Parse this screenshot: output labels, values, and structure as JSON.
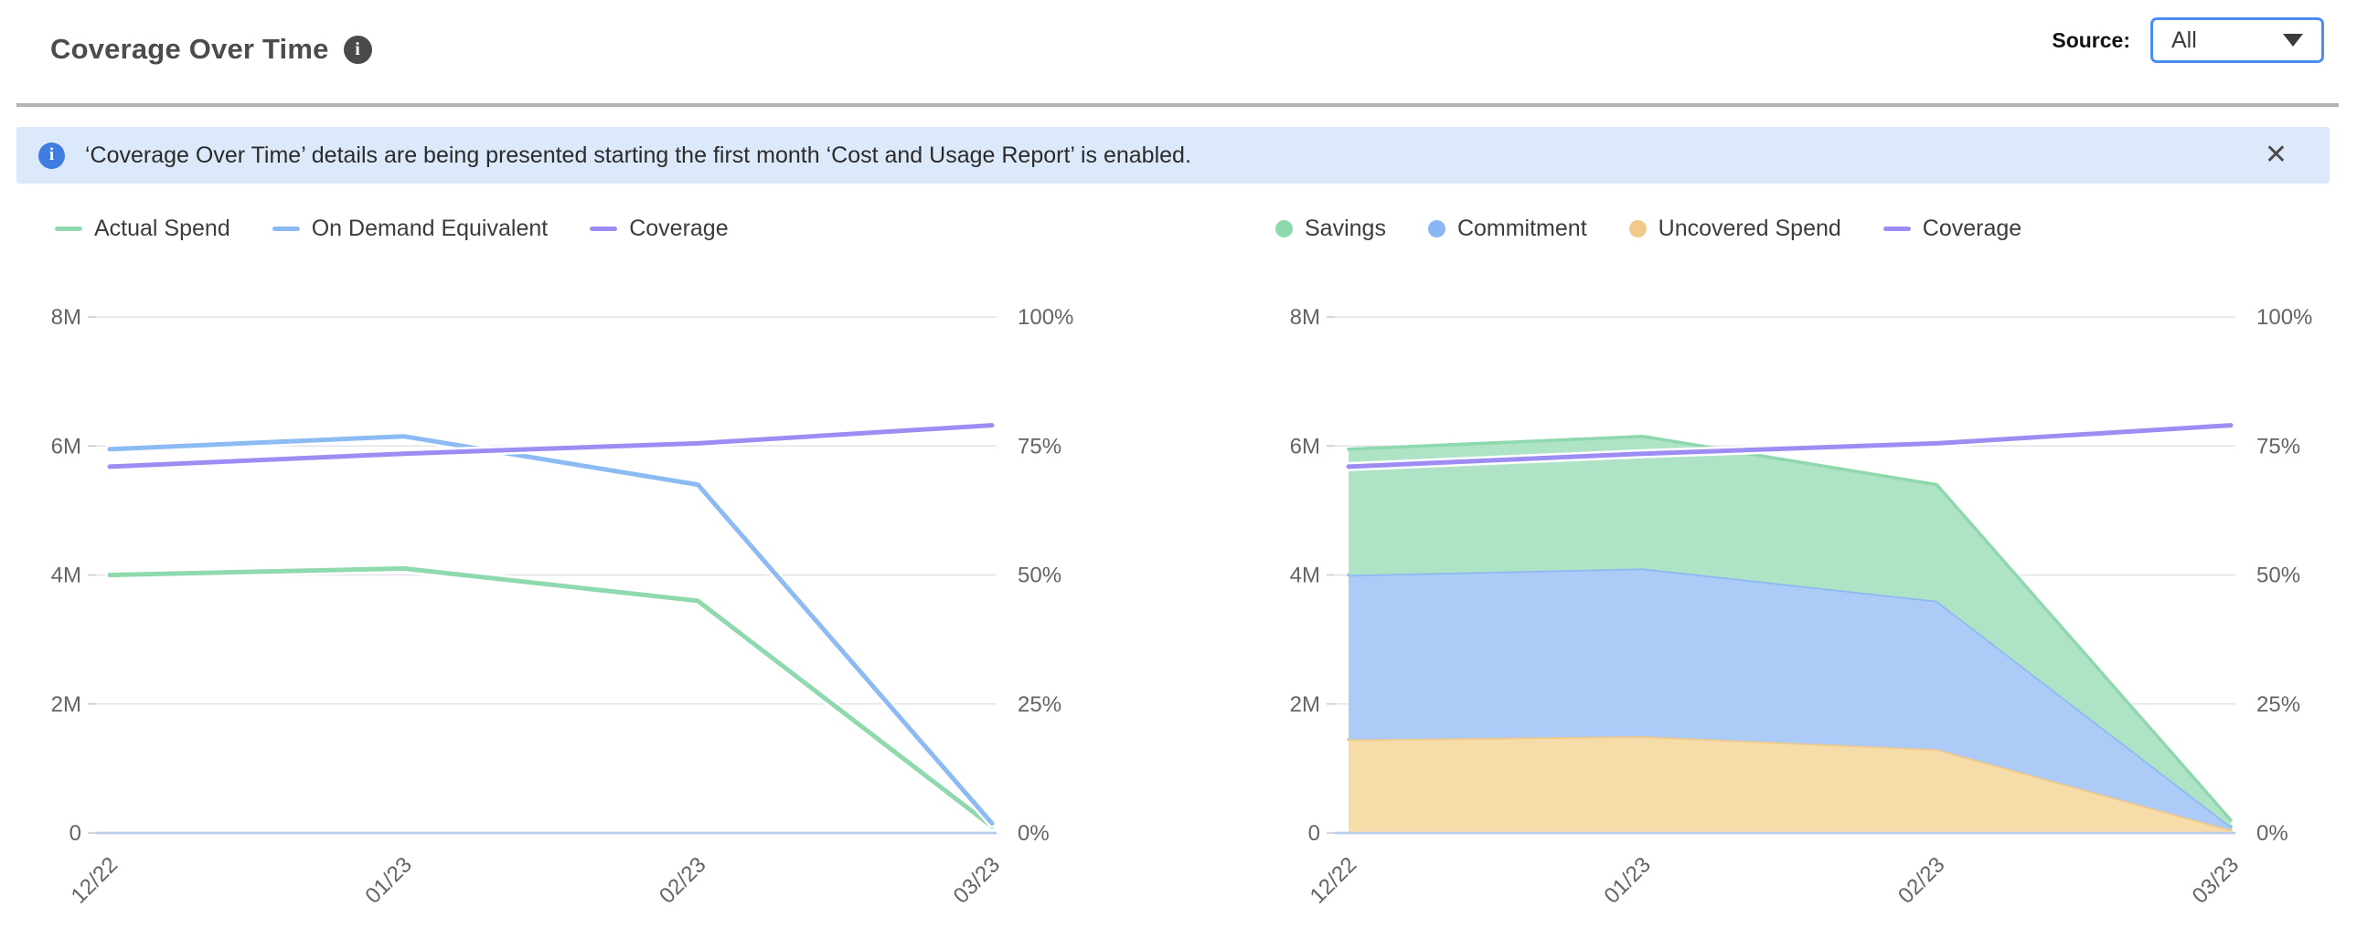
{
  "header": {
    "title": "Coverage Over Time",
    "info_icon": "i",
    "source_label": "Source:",
    "source_value": "All",
    "select_border_color": "#4a8df0"
  },
  "banner": {
    "info_icon": "i",
    "text": "‘Coverage Over Time’ details are being presented starting the first month ‘Cost and Usage Report’ is enabled.",
    "close_icon": "✕",
    "background": "#dce9fb",
    "icon_color": "#3f7de0"
  },
  "chart_data": [
    {
      "type": "line",
      "stacked": false,
      "categories": [
        "12/22",
        "01/23",
        "02/23",
        "03/23"
      ],
      "left_axis": {
        "max": 8000000,
        "ticks": [
          {
            "label": "0",
            "value": 0
          },
          {
            "label": "2M",
            "value": 2000000
          },
          {
            "label": "4M",
            "value": 4000000
          },
          {
            "label": "6M",
            "value": 6000000
          },
          {
            "label": "8M",
            "value": 8000000
          }
        ]
      },
      "right_axis": {
        "max": 100,
        "ticks": [
          {
            "label": "0%",
            "value": 0
          },
          {
            "label": "25%",
            "value": 25
          },
          {
            "label": "50%",
            "value": 50
          },
          {
            "label": "75%",
            "value": 75
          },
          {
            "label": "100%",
            "value": 100
          }
        ]
      },
      "series": [
        {
          "name": "Actual Spend",
          "kind": "line",
          "axis": "left",
          "color": "#8fd9ae",
          "values": [
            4000000,
            4100000,
            3600000,
            100000
          ]
        },
        {
          "name": "On Demand Equivalent",
          "kind": "line",
          "axis": "left",
          "color": "#8cbaf3",
          "values": [
            5950000,
            6150000,
            5400000,
            150000
          ]
        },
        {
          "name": "Coverage",
          "kind": "line",
          "axis": "right",
          "color": "#9d8df2",
          "values": [
            71,
            73.5,
            75.5,
            79
          ]
        }
      ],
      "legend": [
        {
          "label": "Actual Spend",
          "swatch": "line",
          "color": "#8fd9ae"
        },
        {
          "label": "On Demand Equivalent",
          "swatch": "line",
          "color": "#8cbaf3"
        },
        {
          "label": "Coverage",
          "swatch": "line",
          "color": "#9d8df2"
        }
      ],
      "grid": true,
      "legend_position": "top-left"
    },
    {
      "type": "area",
      "stacked": true,
      "categories": [
        "12/22",
        "01/23",
        "02/23",
        "03/23"
      ],
      "left_axis": {
        "max": 8000000,
        "ticks": [
          {
            "label": "0",
            "value": 0
          },
          {
            "label": "2M",
            "value": 2000000
          },
          {
            "label": "4M",
            "value": 4000000
          },
          {
            "label": "6M",
            "value": 6000000
          },
          {
            "label": "8M",
            "value": 8000000
          }
        ]
      },
      "right_axis": {
        "max": 100,
        "ticks": [
          {
            "label": "0%",
            "value": 0
          },
          {
            "label": "25%",
            "value": 25
          },
          {
            "label": "50%",
            "value": 50
          },
          {
            "label": "75%",
            "value": 75
          },
          {
            "label": "100%",
            "value": 100
          }
        ]
      },
      "series": [
        {
          "name": "Uncovered Spend",
          "kind": "area",
          "axis": "left",
          "color": "#eec98b",
          "fill": "#f5dca8",
          "values": [
            1450000,
            1500000,
            1300000,
            50000
          ]
        },
        {
          "name": "Commitment",
          "kind": "area",
          "axis": "left",
          "color": "#8db9f3",
          "fill": "#accbf7",
          "values": [
            2550000,
            2600000,
            2300000,
            50000
          ]
        },
        {
          "name": "Savings",
          "kind": "area",
          "axis": "left",
          "color": "#8ed8ad",
          "fill": "#aee3c6",
          "values": [
            1950000,
            2050000,
            1800000,
            100000
          ]
        },
        {
          "name": "Coverage",
          "kind": "line",
          "axis": "right",
          "color": "#9d8df2",
          "values": [
            71,
            73.5,
            75.5,
            79
          ]
        }
      ],
      "legend": [
        {
          "label": "Savings",
          "swatch": "dot",
          "color": "#8bd9ad"
        },
        {
          "label": "Commitment",
          "swatch": "dot",
          "color": "#8ab6f3"
        },
        {
          "label": "Uncovered Spend",
          "swatch": "dot",
          "color": "#f0ca8d"
        },
        {
          "label": "Coverage",
          "swatch": "line",
          "color": "#9d8df2"
        }
      ],
      "grid": true,
      "legend_position": "top-left"
    }
  ],
  "chart_style": {
    "grid_color": "#e4e4e8",
    "zero_line_color": "#b9cdea",
    "axis_text_color": "#63636a"
  }
}
